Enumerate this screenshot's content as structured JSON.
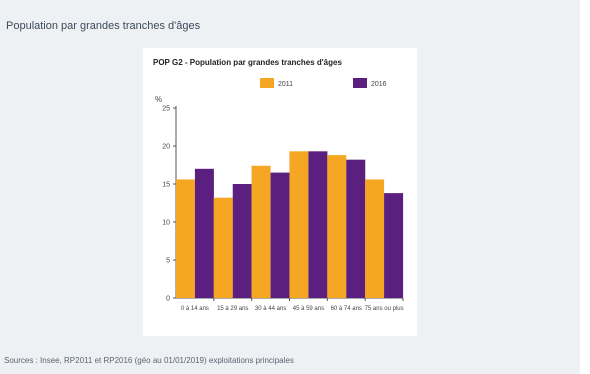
{
  "section": {
    "title": "Population par grandes tranches d'âges",
    "source": "Sources : Insee, RP2011 et RP2016 (géo au 01/01/2019) exploitations principales"
  },
  "chart_data": {
    "type": "bar",
    "title": "POP G2 - Population par grandes tranches d'âges",
    "ylabel": "%",
    "ylim": [
      0,
      25
    ],
    "yticks": [
      0,
      5,
      10,
      15,
      20,
      25
    ],
    "categories": [
      "0 à 14 ans",
      "15 à 29 ans",
      "30 à 44 ans",
      "45 à 59 ans",
      "60 à 74 ans",
      "75 ans ou plus"
    ],
    "series": [
      {
        "name": "2011",
        "color": "#f5a623",
        "values": [
          15.6,
          13.2,
          17.4,
          19.3,
          18.8,
          15.6
        ]
      },
      {
        "name": "2016",
        "color": "#5b1f80",
        "values": [
          17.0,
          15.0,
          16.5,
          19.3,
          18.2,
          13.8
        ]
      }
    ],
    "legend_position": "top",
    "grid": false
  }
}
